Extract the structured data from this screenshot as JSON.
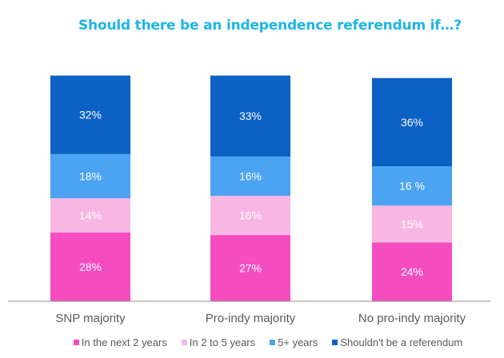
{
  "chart_data": {
    "type": "bar",
    "stacked": true,
    "title": "Should there be an independence referendum if…?",
    "categories": [
      "SNP majority",
      "Pro-indy majority",
      "No pro-indy majority"
    ],
    "series": [
      {
        "name": "In the next 2 years",
        "color": "#F54CBF",
        "values": [
          28,
          27,
          24
        ],
        "labels": [
          "28%",
          "27%",
          "24%"
        ]
      },
      {
        "name": "In 2 to 5 years",
        "color": "#F8B6E2",
        "values": [
          14,
          16,
          15
        ],
        "labels": [
          "14%",
          "16%",
          "15%"
        ]
      },
      {
        "name": "5+ years",
        "color": "#4BA3F2",
        "values": [
          18,
          16,
          16
        ],
        "labels": [
          "18%",
          "16%",
          "16 %"
        ]
      },
      {
        "name": "Shouldn't be a referendum",
        "color": "#0B61C4",
        "values": [
          32,
          33,
          36
        ],
        "labels": [
          "32%",
          "33%",
          "36%"
        ]
      }
    ],
    "xlabel": "",
    "ylabel": "",
    "ylim": [
      0,
      100
    ],
    "grid": false,
    "legend": "bottom"
  }
}
